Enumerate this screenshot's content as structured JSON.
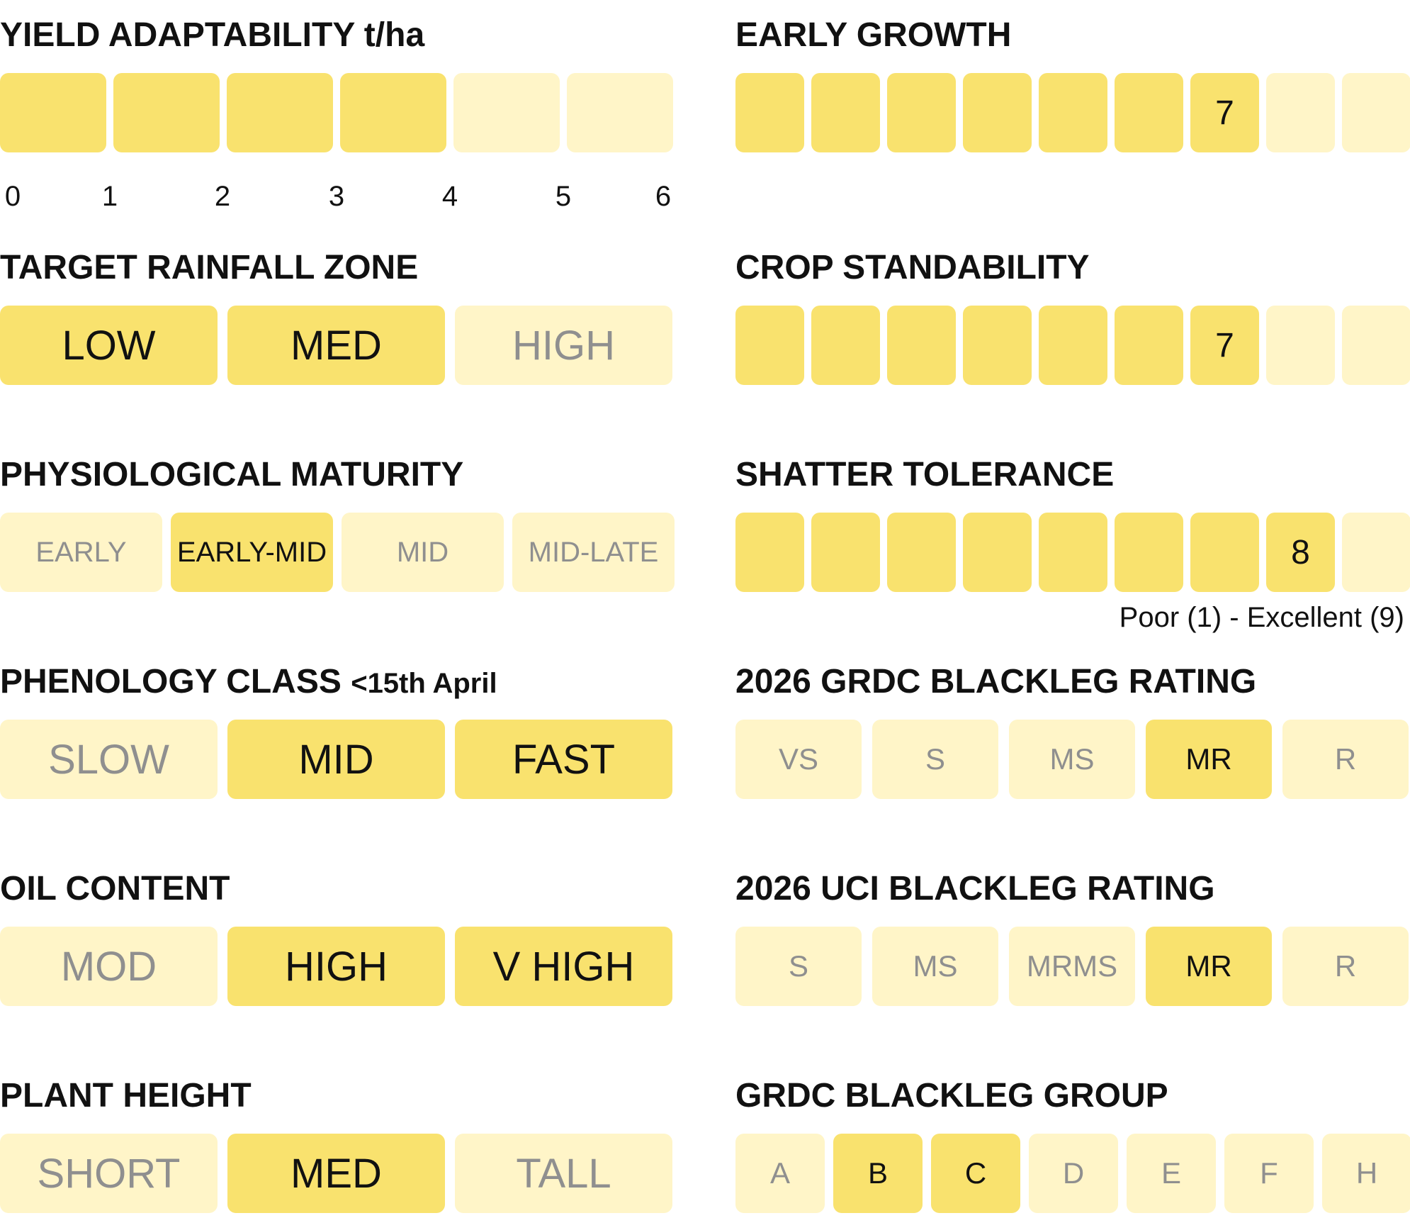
{
  "colors": {
    "filled": "#f9e26e",
    "empty": "#fff5c8",
    "text_dark": "#111111",
    "text_muted": "#8f8f8f"
  },
  "left": {
    "yield": {
      "title": "YIELD ADAPTABILITY t/ha",
      "value_t_ha": 4,
      "scale_max": 6,
      "ticks": [
        "0",
        "1",
        "2",
        "3",
        "4",
        "5",
        "6"
      ]
    },
    "rainfall": {
      "title": "TARGET RAINFALL ZONE",
      "options": [
        {
          "label": "LOW",
          "selected": true
        },
        {
          "label": "MED",
          "selected": true
        },
        {
          "label": "HIGH",
          "selected": false
        }
      ]
    },
    "maturity": {
      "title": "PHYSIOLOGICAL MATURITY",
      "options": [
        {
          "label": "EARLY",
          "selected": false
        },
        {
          "label": "EARLY-MID",
          "selected": true
        },
        {
          "label": "MID",
          "selected": false
        },
        {
          "label": "MID-LATE",
          "selected": false
        }
      ]
    },
    "phenology": {
      "title": "PHENOLOGY CLASS",
      "suffix": "<15th April",
      "options": [
        {
          "label": "SLOW",
          "selected": false
        },
        {
          "label": "MID",
          "selected": true
        },
        {
          "label": "FAST",
          "selected": true
        }
      ]
    },
    "oil": {
      "title": "OIL CONTENT",
      "options": [
        {
          "label": "MOD",
          "selected": false
        },
        {
          "label": "HIGH",
          "selected": true
        },
        {
          "label": "V HIGH",
          "selected": true
        }
      ]
    },
    "height": {
      "title": "PLANT HEIGHT",
      "options": [
        {
          "label": "SHORT",
          "selected": false
        },
        {
          "label": "MED",
          "selected": true
        },
        {
          "label": "TALL",
          "selected": false
        }
      ]
    }
  },
  "right": {
    "early_growth": {
      "title": "EARLY GROWTH",
      "value": "7",
      "max": 9
    },
    "standability": {
      "title": "CROP STANDABILITY",
      "value": "7",
      "max": 9
    },
    "shatter": {
      "title": "SHATTER TOLERANCE",
      "value": "8",
      "max": 9,
      "scale_note": "Poor (1) - Excellent (9)"
    },
    "grdc_rating": {
      "title": "2026 GRDC BLACKLEG RATING",
      "options": [
        {
          "label": "VS",
          "selected": false
        },
        {
          "label": "S",
          "selected": false
        },
        {
          "label": "MS",
          "selected": false
        },
        {
          "label": "MR",
          "selected": true
        },
        {
          "label": "R",
          "selected": false
        }
      ]
    },
    "uci_rating": {
      "title": "2026 UCI BLACKLEG RATING",
      "options": [
        {
          "label": "S",
          "selected": false
        },
        {
          "label": "MS",
          "selected": false
        },
        {
          "label": "MRMS",
          "selected": false
        },
        {
          "label": "MR",
          "selected": true
        },
        {
          "label": "R",
          "selected": false
        }
      ]
    },
    "grdc_group": {
      "title": "GRDC BLACKLEG GROUP",
      "options": [
        {
          "label": "A",
          "selected": false
        },
        {
          "label": "B",
          "selected": true
        },
        {
          "label": "C",
          "selected": true
        },
        {
          "label": "D",
          "selected": false
        },
        {
          "label": "E",
          "selected": false
        },
        {
          "label": "F",
          "selected": false
        },
        {
          "label": "H",
          "selected": false
        }
      ]
    }
  }
}
